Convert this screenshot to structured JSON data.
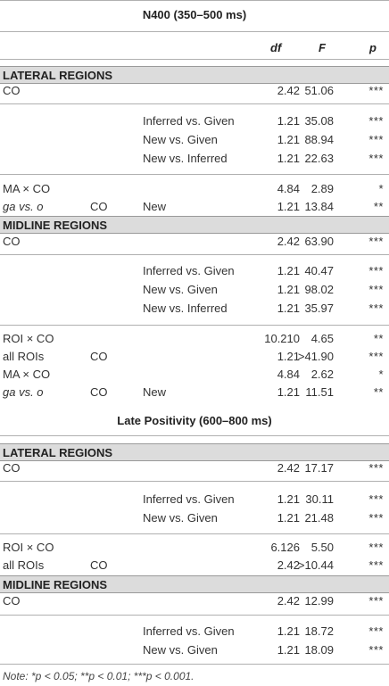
{
  "headers": {
    "df": "df",
    "f": "F",
    "p": "p"
  },
  "sections": [
    {
      "title": "N400 (350–500 ms)",
      "blocks": [
        {
          "region": "LATERAL REGIONS",
          "rows": [
            {
              "c0": "CO",
              "c1": "",
              "c2": "",
              "df": "2.42",
              "f": "51.06",
              "p": "***"
            },
            {
              "c0": "",
              "c1": "",
              "c2": "Inferred vs. Given",
              "df": "1.21",
              "f": "35.08",
              "p": "***"
            },
            {
              "c0": "",
              "c1": "",
              "c2": "New vs. Given",
              "df": "1.21",
              "f": "88.94",
              "p": "***"
            },
            {
              "c0": "",
              "c1": "",
              "c2": "New vs. Inferred",
              "df": "1.21",
              "f": "22.63",
              "p": "***"
            },
            {
              "c0": "MA × CO",
              "c1": "",
              "c2": "",
              "df": "4.84",
              "f": "2.89",
              "p": "*"
            },
            {
              "c0": "ga vs. o",
              "c1": "CO",
              "c2": "New",
              "df": "1.21",
              "f": "13.84",
              "p": "**"
            }
          ]
        },
        {
          "region": "MIDLINE REGIONS",
          "rows": [
            {
              "c0": "CO",
              "c1": "",
              "c2": "",
              "df": "2.42",
              "f": "63.90",
              "p": "***"
            },
            {
              "c0": "",
              "c1": "",
              "c2": "Inferred vs. Given",
              "df": "1.21",
              "f": "40.47",
              "p": "***"
            },
            {
              "c0": "",
              "c1": "",
              "c2": "New vs. Given",
              "df": "1.21",
              "f": "98.02",
              "p": "***"
            },
            {
              "c0": "",
              "c1": "",
              "c2": "New vs. Inferred",
              "df": "1.21",
              "f": "35.97",
              "p": "***"
            },
            {
              "c0": "ROI × CO",
              "c1": "",
              "c2": "",
              "df": "10.210",
              "f": "4.65",
              "p": "**"
            },
            {
              "c0": "all ROIs",
              "c1": "CO",
              "c2": "",
              "df": "1.21",
              "f": ">41.90",
              "p": "***"
            },
            {
              "c0": "MA × CO",
              "c1": "",
              "c2": "",
              "df": "4.84",
              "f": "2.62",
              "p": "*"
            },
            {
              "c0": "ga vs. o",
              "c1": "CO",
              "c2": "New",
              "df": "1.21",
              "f": "11.51",
              "p": "**"
            }
          ]
        }
      ]
    },
    {
      "title": "Late Positivity (600–800 ms)",
      "blocks": [
        {
          "region": "LATERAL REGIONS",
          "rows": [
            {
              "c0": "CO",
              "c1": "",
              "c2": "",
              "df": "2.42",
              "f": "17.17",
              "p": "***"
            },
            {
              "c0": "",
              "c1": "",
              "c2": "Inferred vs. Given",
              "df": "1.21",
              "f": "30.11",
              "p": "***"
            },
            {
              "c0": "",
              "c1": "",
              "c2": "New vs. Given",
              "df": "1.21",
              "f": "21.48",
              "p": "***"
            },
            {
              "c0": "ROI × CO",
              "c1": "",
              "c2": "",
              "df": "6.126",
              "f": "5.50",
              "p": "***"
            },
            {
              "c0": "all ROIs",
              "c1": "CO",
              "c2": "",
              "df": "2.42",
              "f": ">10.44",
              "p": "***"
            }
          ]
        },
        {
          "region": "MIDLINE REGIONS",
          "rows": [
            {
              "c0": "CO",
              "c1": "",
              "c2": "",
              "df": "2.42",
              "f": "12.99",
              "p": "***"
            },
            {
              "c0": "",
              "c1": "",
              "c2": "Inferred vs. Given",
              "df": "1.21",
              "f": "18.72",
              "p": "***"
            },
            {
              "c0": "",
              "c1": "",
              "c2": "New vs. Given",
              "df": "1.21",
              "f": "18.09",
              "p": "***"
            }
          ]
        }
      ]
    }
  ],
  "note": "Note: *p < 0.05; **p < 0.01; ***p < 0.001."
}
